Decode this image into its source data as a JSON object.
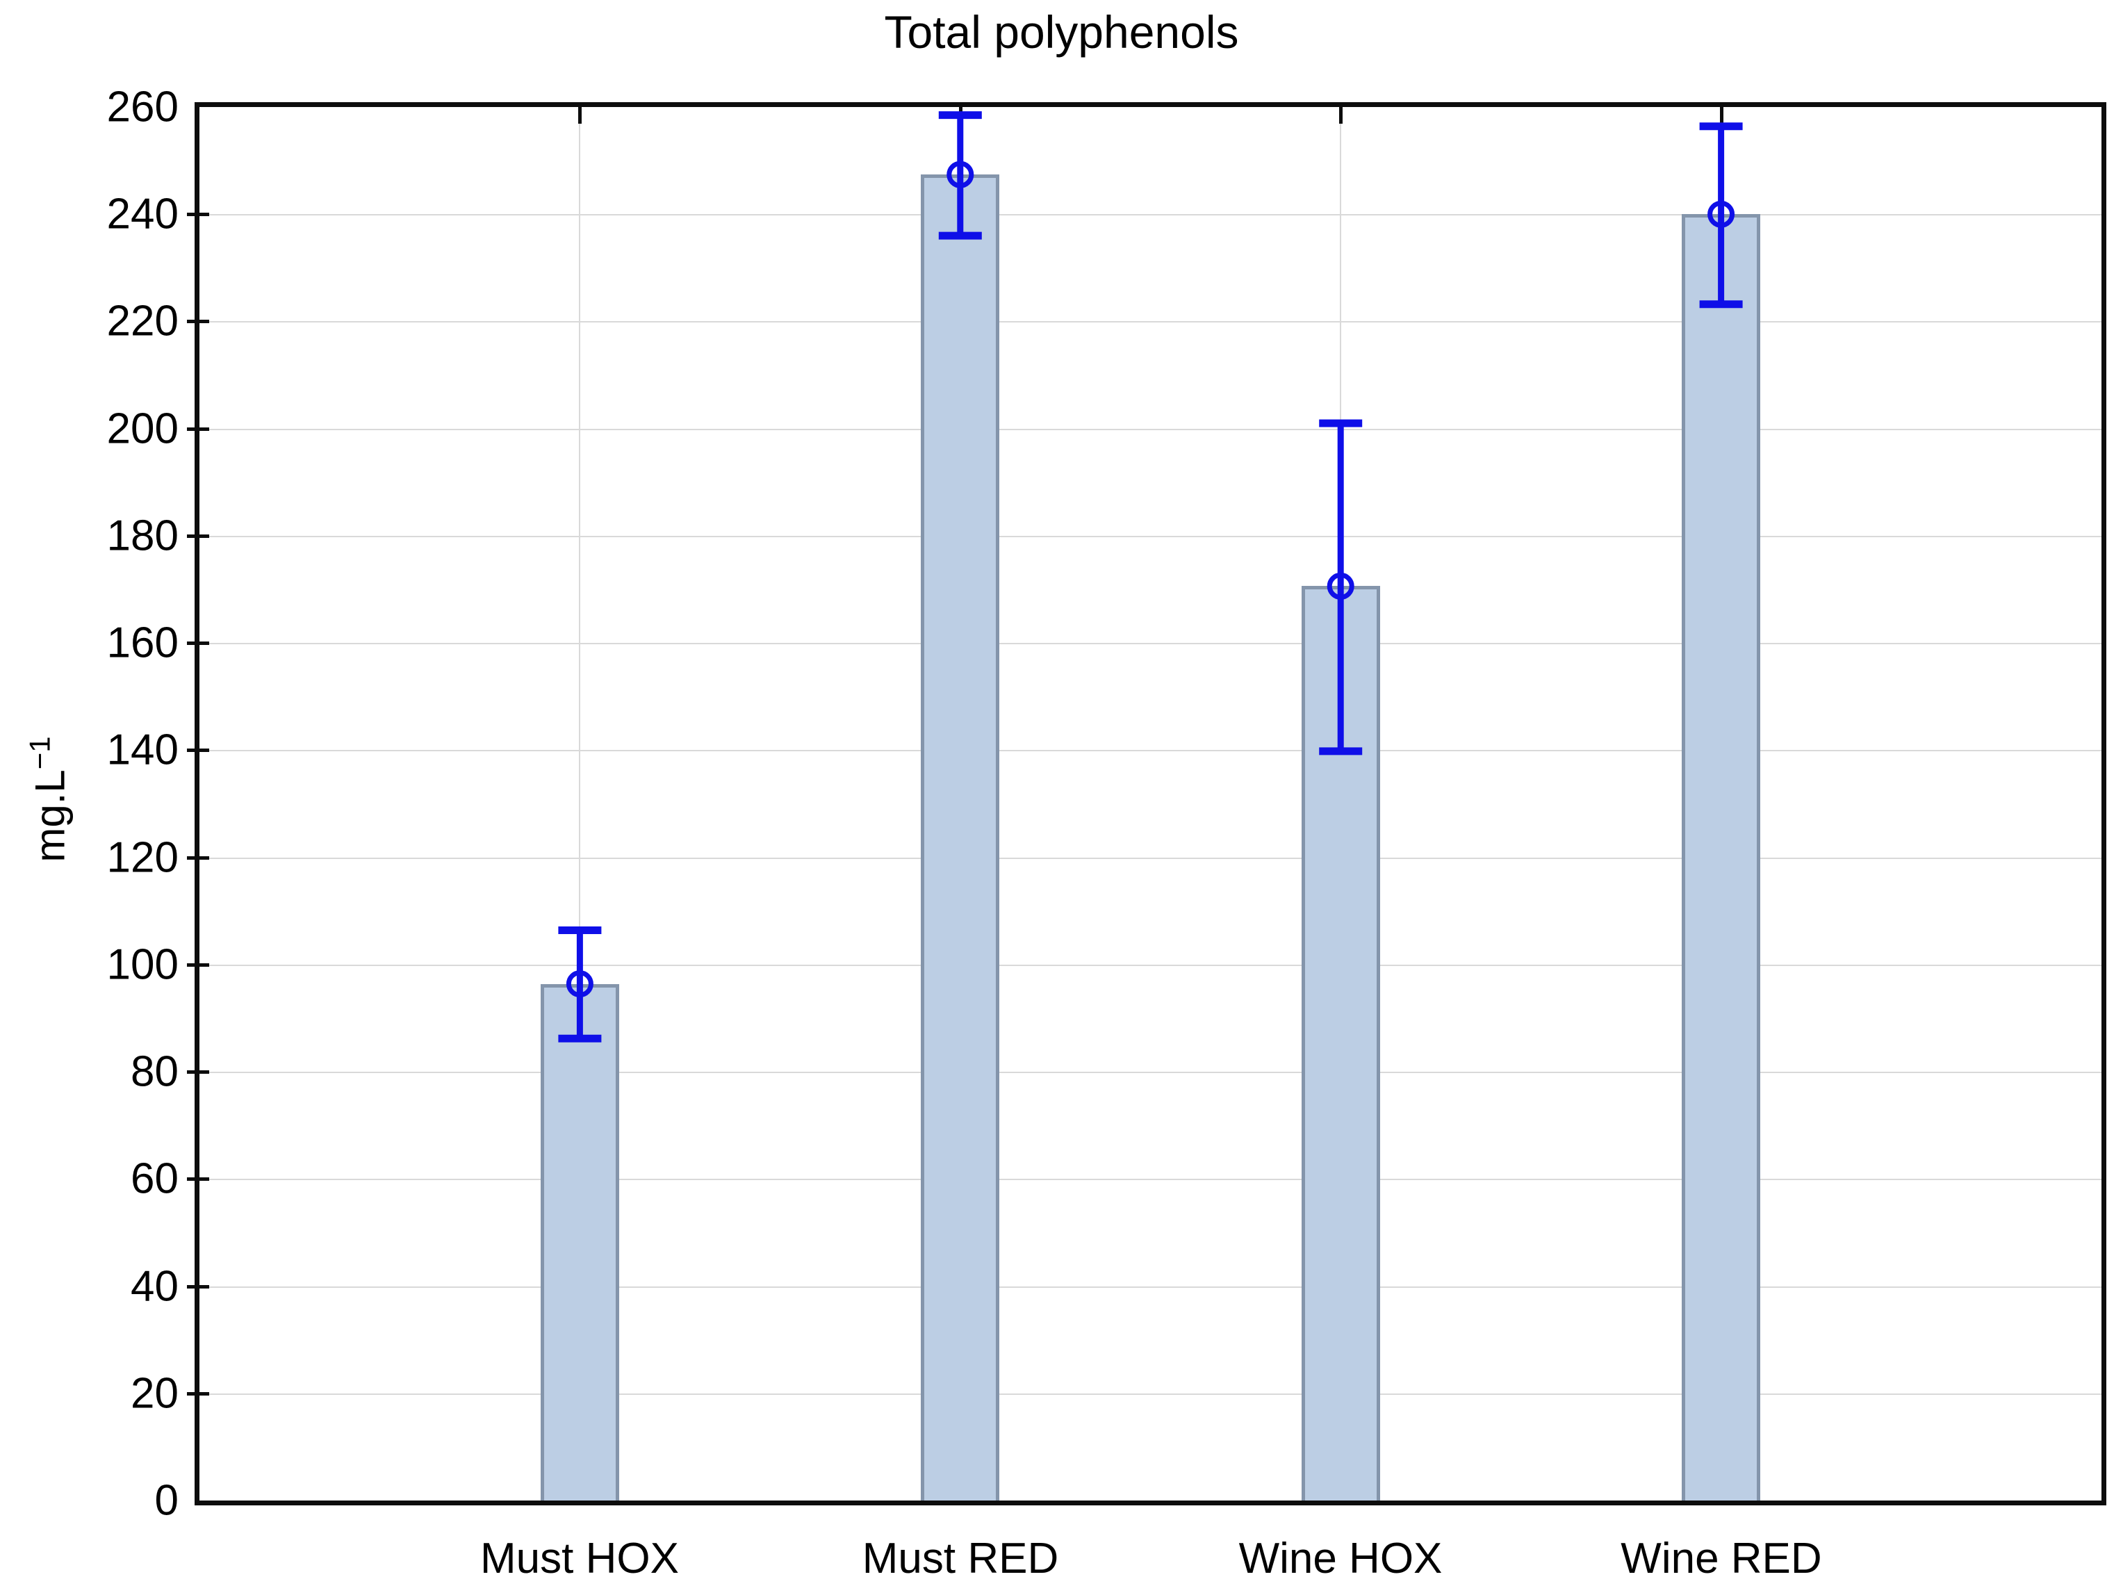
{
  "title": "Total polyphenols",
  "y_axis": {
    "label_base": "mg.L",
    "label_exponent": "−1",
    "min": 0,
    "max": 260,
    "step": 20,
    "tick_labels": [
      "0",
      "20",
      "40",
      "60",
      "80",
      "100",
      "120",
      "140",
      "160",
      "180",
      "200",
      "220",
      "240",
      "260"
    ]
  },
  "x_axis": {
    "categories": [
      "Must HOX",
      "Must RED",
      "Wine HOX",
      "Wine RED"
    ]
  },
  "chart_data": {
    "type": "bar",
    "title": "Total polyphenols",
    "xlabel": "",
    "ylabel": "mg.L−1",
    "ylim": [
      0,
      260
    ],
    "grid": "horizontal gridlines every 20 units; faint vertical gridline at each category center",
    "legend": "none",
    "categories": [
      "Must HOX",
      "Must RED",
      "Wine HOX",
      "Wine RED"
    ],
    "series": [
      {
        "name": "Total polyphenols (mg.L−1)",
        "values": [
          96.4,
          247.4,
          170.6,
          240.0
        ],
        "error_upper_caps": [
          106.4,
          258.5,
          201.0,
          256.4
        ],
        "error_lower_caps": [
          86.2,
          236.0,
          139.8,
          223.2
        ],
        "marker": "open circle at mean with vertical error bar and horizontal caps"
      }
    ]
  },
  "colors": {
    "bar_fill": "#bccee4",
    "bar_border": "#8495ab",
    "error_bar": "#0f0fe8",
    "gridline": "#d9d9d9",
    "frame": "#0d0d0d",
    "text": "#000000",
    "background": "#ffffff"
  }
}
